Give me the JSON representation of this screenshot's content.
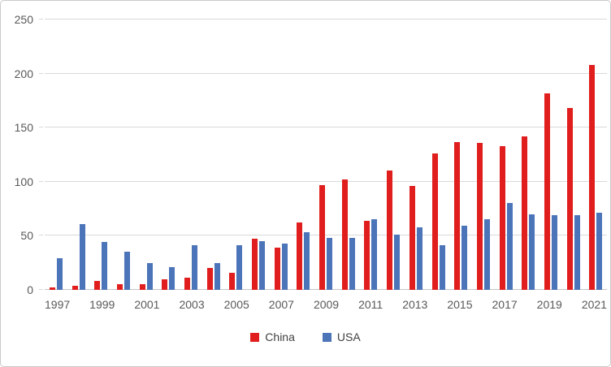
{
  "chart_data": {
    "type": "bar",
    "title": "",
    "xlabel": "",
    "ylabel": "",
    "categories": [
      1997,
      1998,
      1999,
      2000,
      2001,
      2002,
      2003,
      2004,
      2005,
      2006,
      2007,
      2008,
      2009,
      2010,
      2011,
      2012,
      2013,
      2014,
      2015,
      2016,
      2017,
      2018,
      2019,
      2020,
      2021
    ],
    "series": [
      {
        "name": "China",
        "color": "#e01e1e",
        "values": [
          2,
          4,
          8,
          5,
          5,
          10,
          11,
          20,
          16,
          47,
          39,
          62,
          97,
          102,
          64,
          110,
          96,
          126,
          137,
          136,
          133,
          142,
          182,
          168,
          208
        ]
      },
      {
        "name": "USA",
        "color": "#4c74b8",
        "values": [
          29,
          61,
          44,
          35,
          25,
          21,
          41,
          25,
          41,
          45,
          43,
          53,
          48,
          48,
          65,
          51,
          58,
          41,
          59,
          65,
          80,
          70,
          69,
          69,
          71
        ]
      }
    ],
    "ylim": [
      0,
      250
    ],
    "yticks": [
      0,
      50,
      100,
      150,
      200,
      250
    ],
    "xtick_labels": [
      "1997",
      "1999",
      "2001",
      "2003",
      "2005",
      "2007",
      "2009",
      "2011",
      "2013",
      "2015",
      "2017",
      "2019",
      "2021"
    ],
    "xtick_interval": 2,
    "grid": "horizontal",
    "legend_position": "bottom"
  },
  "colors": {
    "background": "#ffffff",
    "border": "#c9c9c9",
    "gridline": "#d9d9d9",
    "axis_text": "#595959",
    "legend_text": "#404040"
  }
}
